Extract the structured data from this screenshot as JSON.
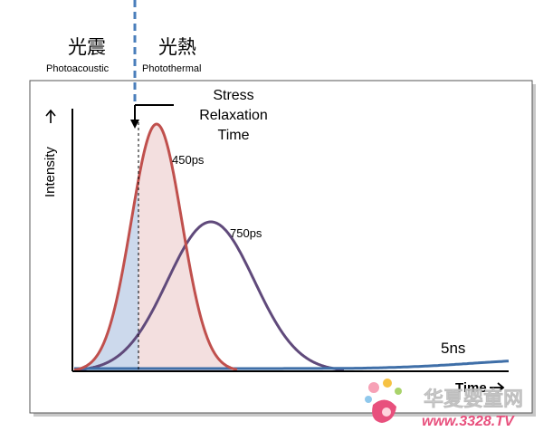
{
  "labels": {
    "photoacoustic_cjk": "光震",
    "photoacoustic_en": "Photoacoustic",
    "photothermal_cjk": "光熱",
    "photothermal_en": "Photothermal",
    "stress_line1": "Stress",
    "stress_line2": "Relaxation",
    "stress_line3": "Time",
    "y_axis": "Intensity",
    "x_axis": "Time",
    "pulse_450": "450ps",
    "pulse_750": "750ps",
    "pulse_5ns": "5ns"
  },
  "watermark": {
    "site_name": "华夏婴童网",
    "site_url": "www.3328.TV"
  },
  "colors": {
    "red_curve": "#c0504d",
    "red_fill": "#f2dcdb",
    "purple_curve": "#604a7b",
    "blue_curve": "#3f6fa8",
    "blue_fill": "#c6d5ea",
    "dashed_line": "#4a7ebb",
    "watermark_pink": "#e8507d"
  }
}
